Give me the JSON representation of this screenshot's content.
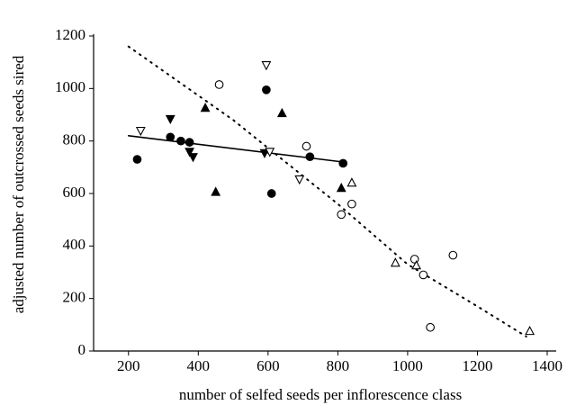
{
  "chart_data": {
    "type": "scatter",
    "xlabel": "number of selfed seeds per inflorescence class",
    "ylabel": "adjusted number of outcrossed seeds sired",
    "xlim": [
      100,
      1400
    ],
    "xticks": [
      200,
      400,
      600,
      800,
      1000,
      1200,
      1400
    ],
    "ylim": [
      0,
      1200
    ],
    "yticks": [
      0,
      200,
      400,
      600,
      800,
      1000,
      1200
    ],
    "series": [
      {
        "marker": "circle",
        "filled": true,
        "color": "#000000",
        "x": [
          225,
          320,
          350,
          375,
          595,
          610,
          720,
          815
        ],
        "values": [
          730,
          815,
          800,
          795,
          995,
          600,
          740,
          715
        ]
      },
      {
        "marker": "triangle-down",
        "filled": true,
        "color": "#000000",
        "x": [
          320,
          375,
          385,
          590
        ],
        "values": [
          885,
          760,
          740,
          755
        ]
      },
      {
        "marker": "triangle-up",
        "filled": true,
        "color": "#000000",
        "x": [
          420,
          450,
          640,
          810
        ],
        "values": [
          925,
          605,
          905,
          620
        ]
      },
      {
        "marker": "circle",
        "filled": false,
        "color": "#000000",
        "x": [
          460,
          710,
          810,
          840,
          1020,
          1045,
          1065,
          1130
        ],
        "values": [
          1015,
          780,
          520,
          560,
          350,
          290,
          90,
          365
        ]
      },
      {
        "marker": "triangle-down",
        "filled": false,
        "color": "#000000",
        "x": [
          235,
          595,
          605,
          690
        ],
        "values": [
          840,
          1090,
          760,
          655
        ]
      },
      {
        "marker": "triangle-up",
        "filled": false,
        "color": "#000000",
        "x": [
          840,
          965,
          1025,
          1350
        ],
        "values": [
          640,
          335,
          325,
          75
        ]
      }
    ],
    "fits": [
      {
        "style": "solid",
        "color": "#000000",
        "x": [
          200,
          815
        ],
        "values": [
          820,
          720
        ]
      },
      {
        "style": "dotted",
        "color": "#000000",
        "x": [
          200,
          500,
          800,
          1000,
          1200,
          1340
        ],
        "values": [
          1160,
          880,
          560,
          330,
          170,
          55
        ]
      }
    ]
  }
}
